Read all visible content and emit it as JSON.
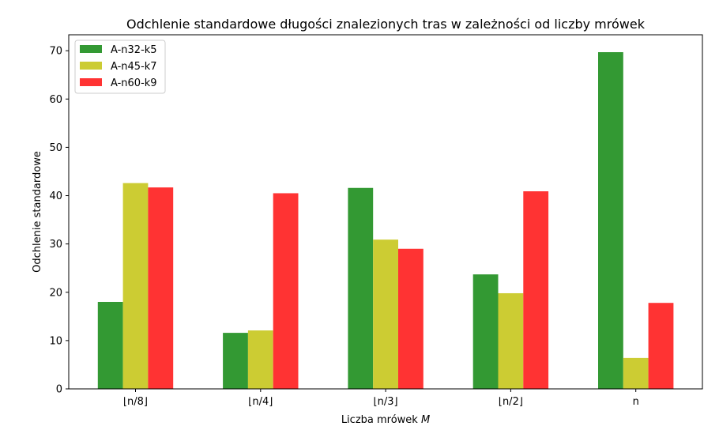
{
  "chart_data": {
    "type": "bar",
    "title": "Odchlenie standardowe długości znalezionych tras w zależności od liczby mrówek",
    "xlabel_text": "Liczba mrówek ",
    "xlabel_var": "M",
    "ylabel": "Odchlenie standardowe",
    "categories": [
      "⌊n/8⌋",
      "⌊n/4⌋",
      "⌊n/3⌋",
      "⌊n/2⌋",
      "n"
    ],
    "ylim": [
      0,
      73.3
    ],
    "yticks": [
      0,
      10,
      20,
      30,
      40,
      50,
      60,
      70
    ],
    "grid": false,
    "legend_position": "top-left",
    "series": [
      {
        "name": "A-n32-k5",
        "color": "#339933",
        "values": [
          18.0,
          11.6,
          41.6,
          23.7,
          69.7
        ]
      },
      {
        "name": "A-n45-k7",
        "color": "#cccc33",
        "values": [
          42.6,
          12.1,
          30.9,
          19.8,
          6.4
        ]
      },
      {
        "name": "A-n60-k9",
        "color": "#ff3333",
        "values": [
          41.7,
          40.5,
          29.0,
          40.9,
          17.8
        ]
      }
    ]
  }
}
